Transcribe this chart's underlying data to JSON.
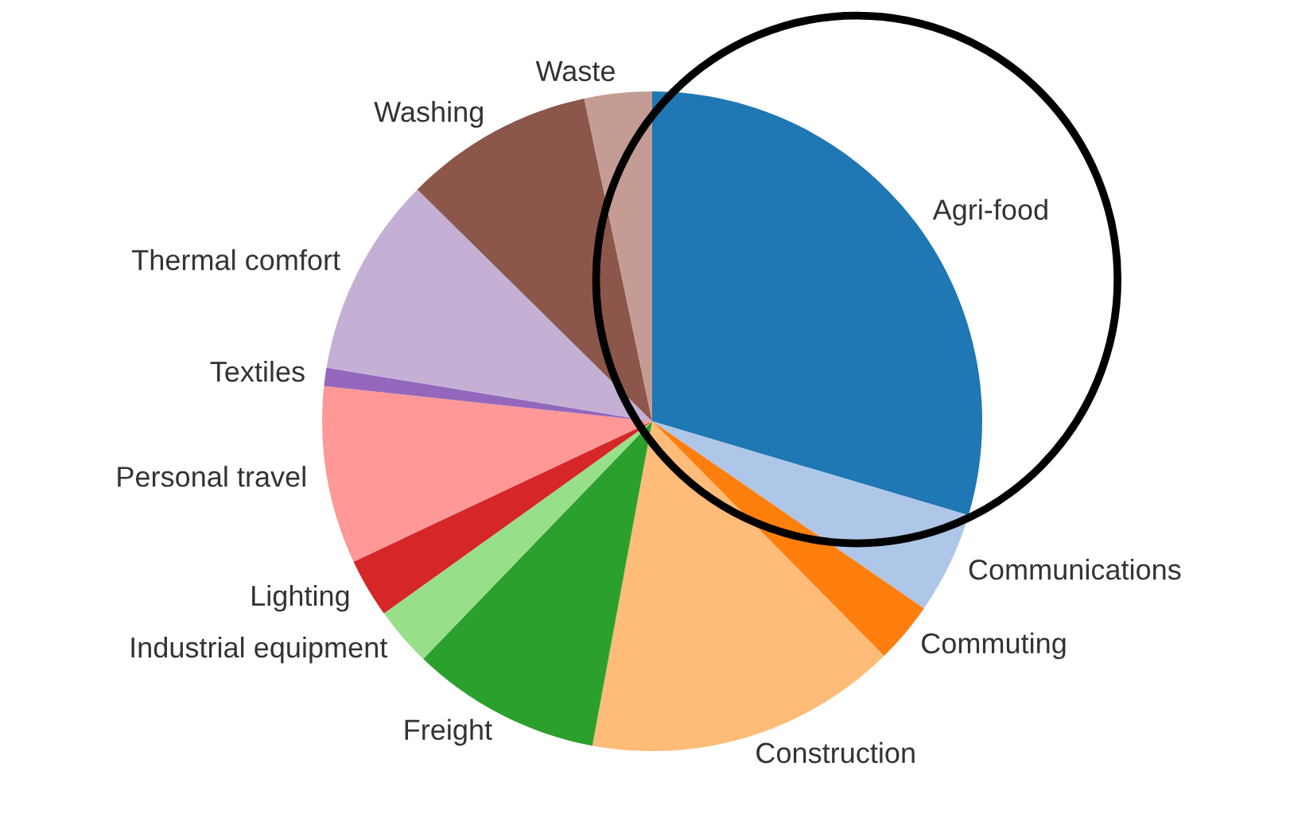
{
  "chart_data": {
    "type": "pie",
    "categories": [
      "Agri-food",
      "Communications",
      "Commuting",
      "Construction",
      "Freight",
      "Industrial equipment",
      "Lighting",
      "Personal travel",
      "Textiles",
      "Thermal comfort",
      "Washing",
      "Waste"
    ],
    "values": [
      29.6,
      5,
      3,
      15.3,
      9.3,
      2.9,
      2.9,
      8.7,
      0.9,
      9.8,
      9.3,
      3.3
    ],
    "colors": [
      "#1f77b4",
      "#aec7e8",
      "#ff7f0e",
      "#ffbb78",
      "#2ca02c",
      "#98df8a",
      "#d62728",
      "#ff9896",
      "#9467bd",
      "#c5b0d5",
      "#8c564b",
      "#c49c94"
    ]
  }
}
